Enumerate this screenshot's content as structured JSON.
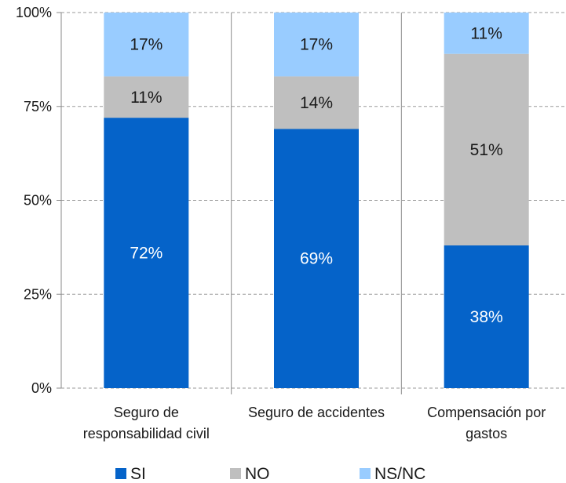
{
  "chart_data": {
    "type": "bar",
    "stacked": true,
    "percent": true,
    "categories": [
      [
        "Seguro de",
        "responsabilidad civil"
      ],
      [
        "Seguro de accidentes"
      ],
      [
        "Compensación por",
        "gastos"
      ]
    ],
    "series": [
      {
        "name": "SI",
        "values": [
          72,
          69,
          38
        ],
        "color": "#0563C9",
        "label_color": "#ffffff"
      },
      {
        "name": "NO",
        "values": [
          11,
          14,
          51
        ],
        "color": "#BFBFBF",
        "label_color": "#1a1a1a"
      },
      {
        "name": "NS/NC",
        "values": [
          17,
          17,
          11
        ],
        "color": "#99CCFF",
        "label_color": "#1a1a1a"
      }
    ],
    "ylim": [
      0,
      100
    ],
    "yticks": [
      "0%",
      "25%",
      "50%",
      "75%",
      "100%"
    ],
    "ytick_values": [
      0,
      25,
      50,
      75,
      100
    ],
    "grid": true,
    "legend_position": "bottom"
  }
}
